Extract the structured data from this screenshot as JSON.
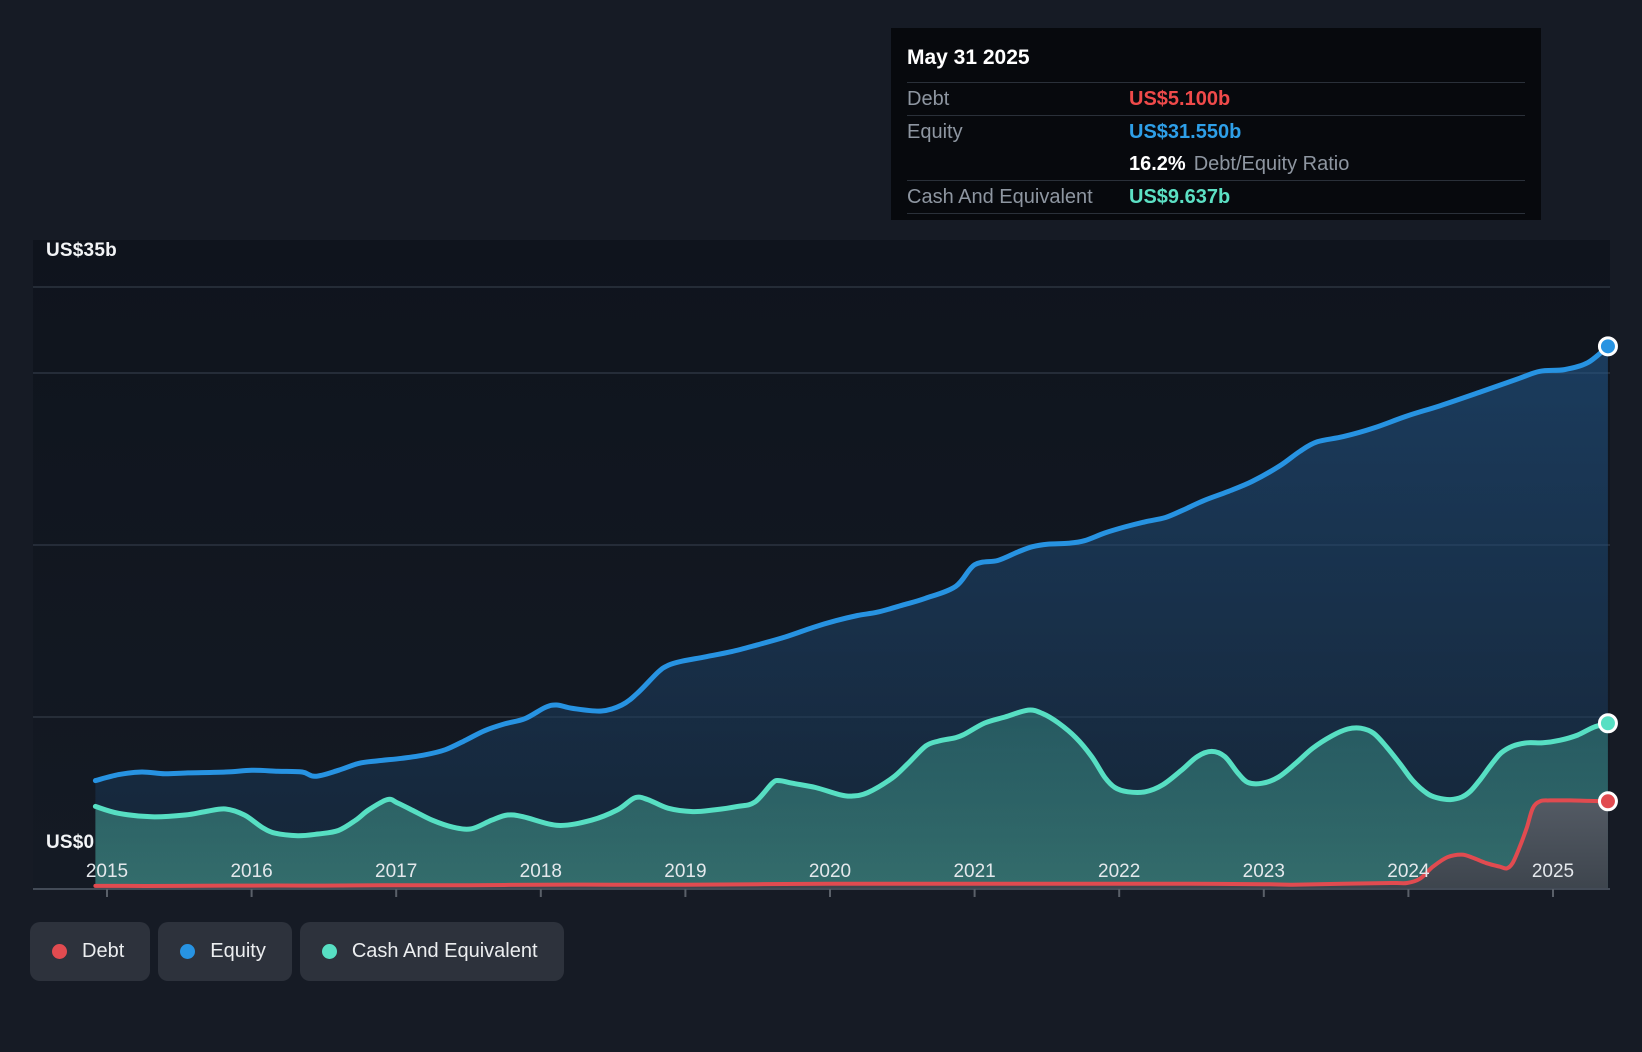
{
  "colors": {
    "debt": "#e14b50",
    "equity": "#2793e2",
    "cash": "#57dfc3",
    "debt_value": "#ef4a4a",
    "equity_value": "#2e9fe8",
    "cash_value": "#5ce0c4",
    "grid": "#2c3440",
    "axis": "#434b57",
    "tick": "#5a6069",
    "page_bg": "#161b25",
    "plot_bg_top": "#0f141d",
    "plot_bg_bottom": "#141a24",
    "tooltip_bg": "#07090d",
    "legend_bg": "#2d323c"
  },
  "tooltip": {
    "date": "May 31 2025",
    "rows": [
      {
        "label": "Debt",
        "value": "US$5.100b",
        "color_key": "debt_value"
      },
      {
        "label": "Equity",
        "value": "US$31.550b",
        "color_key": "equity_value"
      },
      {
        "label": "Cash And Equivalent",
        "value": "US$9.637b",
        "color_key": "cash_value"
      }
    ],
    "ratio_value": "16.2%",
    "ratio_label": "Debt/Equity Ratio"
  },
  "legend": {
    "items": [
      {
        "label": "Debt",
        "color_key": "debt"
      },
      {
        "label": "Equity",
        "color_key": "equity"
      },
      {
        "label": "Cash And Equivalent",
        "color_key": "cash"
      }
    ]
  },
  "chart_data": {
    "type": "area",
    "unit": "US$ billions",
    "y_axis": {
      "top_label": "US$35b",
      "bottom_label": "US$0",
      "max": 35,
      "min": 0,
      "gridline_values": [
        10,
        20,
        30,
        35
      ]
    },
    "x_axis": {
      "tick_years": [
        2015,
        2016,
        2017,
        2018,
        2019,
        2020,
        2021,
        2022,
        2023,
        2024,
        2025
      ],
      "start": 2014.92,
      "end": 2025.38
    },
    "legend_position": "bottom-left",
    "series": [
      {
        "name": "Equity",
        "color_key": "equity",
        "end_value": 31.55,
        "points": [
          [
            2014.92,
            6.3
          ],
          [
            2015.08,
            6.65
          ],
          [
            2015.24,
            6.8
          ],
          [
            2015.4,
            6.7
          ],
          [
            2015.56,
            6.75
          ],
          [
            2015.82,
            6.8
          ],
          [
            2016.0,
            6.9
          ],
          [
            2016.18,
            6.85
          ],
          [
            2016.35,
            6.8
          ],
          [
            2016.44,
            6.55
          ],
          [
            2016.6,
            6.9
          ],
          [
            2016.74,
            7.3
          ],
          [
            2016.87,
            7.45
          ],
          [
            2017.04,
            7.6
          ],
          [
            2017.2,
            7.8
          ],
          [
            2017.34,
            8.1
          ],
          [
            2017.48,
            8.65
          ],
          [
            2017.61,
            9.2
          ],
          [
            2017.75,
            9.6
          ],
          [
            2017.89,
            9.9
          ],
          [
            2018.03,
            10.55
          ],
          [
            2018.11,
            10.7
          ],
          [
            2018.22,
            10.5
          ],
          [
            2018.42,
            10.35
          ],
          [
            2018.56,
            10.7
          ],
          [
            2018.67,
            11.4
          ],
          [
            2018.81,
            12.6
          ],
          [
            2018.88,
            13.0
          ],
          [
            2018.98,
            13.25
          ],
          [
            2019.14,
            13.5
          ],
          [
            2019.32,
            13.8
          ],
          [
            2019.5,
            14.2
          ],
          [
            2019.69,
            14.65
          ],
          [
            2019.88,
            15.2
          ],
          [
            2020.04,
            15.6
          ],
          [
            2020.19,
            15.9
          ],
          [
            2020.33,
            16.1
          ],
          [
            2020.5,
            16.5
          ],
          [
            2020.66,
            16.9
          ],
          [
            2020.87,
            17.6
          ],
          [
            2021.0,
            18.85
          ],
          [
            2021.16,
            19.1
          ],
          [
            2021.3,
            19.6
          ],
          [
            2021.4,
            19.9
          ],
          [
            2021.51,
            20.05
          ],
          [
            2021.65,
            20.1
          ],
          [
            2021.76,
            20.25
          ],
          [
            2021.9,
            20.7
          ],
          [
            2022.04,
            21.05
          ],
          [
            2022.18,
            21.35
          ],
          [
            2022.32,
            21.6
          ],
          [
            2022.46,
            22.1
          ],
          [
            2022.59,
            22.6
          ],
          [
            2022.75,
            23.1
          ],
          [
            2022.92,
            23.7
          ],
          [
            2023.11,
            24.6
          ],
          [
            2023.25,
            25.45
          ],
          [
            2023.37,
            26.0
          ],
          [
            2023.55,
            26.3
          ],
          [
            2023.76,
            26.8
          ],
          [
            2023.99,
            27.5
          ],
          [
            2024.22,
            28.1
          ],
          [
            2024.5,
            28.9
          ],
          [
            2024.77,
            29.7
          ],
          [
            2024.91,
            30.1
          ],
          [
            2025.08,
            30.2
          ],
          [
            2025.24,
            30.6
          ],
          [
            2025.38,
            31.55
          ]
        ]
      },
      {
        "name": "Cash And Equivalent",
        "color_key": "cash",
        "end_value": 9.637,
        "points": [
          [
            2014.92,
            4.8
          ],
          [
            2015.08,
            4.4
          ],
          [
            2015.31,
            4.2
          ],
          [
            2015.54,
            4.3
          ],
          [
            2015.68,
            4.5
          ],
          [
            2015.82,
            4.65
          ],
          [
            2015.95,
            4.3
          ],
          [
            2016.07,
            3.6
          ],
          [
            2016.16,
            3.25
          ],
          [
            2016.32,
            3.1
          ],
          [
            2016.46,
            3.2
          ],
          [
            2016.6,
            3.4
          ],
          [
            2016.72,
            4.0
          ],
          [
            2016.81,
            4.6
          ],
          [
            2016.94,
            5.2
          ],
          [
            2017.01,
            5.0
          ],
          [
            2017.13,
            4.5
          ],
          [
            2017.25,
            4.0
          ],
          [
            2017.39,
            3.6
          ],
          [
            2017.52,
            3.5
          ],
          [
            2017.66,
            4.0
          ],
          [
            2017.77,
            4.3
          ],
          [
            2017.88,
            4.2
          ],
          [
            2018.12,
            3.7
          ],
          [
            2018.35,
            4.0
          ],
          [
            2018.53,
            4.6
          ],
          [
            2018.65,
            5.3
          ],
          [
            2018.74,
            5.2
          ],
          [
            2018.88,
            4.7
          ],
          [
            2019.05,
            4.5
          ],
          [
            2019.2,
            4.6
          ],
          [
            2019.36,
            4.8
          ],
          [
            2019.48,
            5.05
          ],
          [
            2019.6,
            6.15
          ],
          [
            2019.65,
            6.3
          ],
          [
            2019.74,
            6.15
          ],
          [
            2019.9,
            5.9
          ],
          [
            2020.06,
            5.5
          ],
          [
            2020.15,
            5.4
          ],
          [
            2020.26,
            5.6
          ],
          [
            2020.43,
            6.45
          ],
          [
            2020.54,
            7.3
          ],
          [
            2020.66,
            8.3
          ],
          [
            2020.75,
            8.6
          ],
          [
            2020.87,
            8.8
          ],
          [
            2020.93,
            9.0
          ],
          [
            2021.07,
            9.65
          ],
          [
            2021.21,
            10.0
          ],
          [
            2021.37,
            10.4
          ],
          [
            2021.47,
            10.2
          ],
          [
            2021.58,
            9.65
          ],
          [
            2021.7,
            8.8
          ],
          [
            2021.81,
            7.7
          ],
          [
            2021.9,
            6.5
          ],
          [
            2021.97,
            5.9
          ],
          [
            2022.06,
            5.65
          ],
          [
            2022.18,
            5.65
          ],
          [
            2022.3,
            6.05
          ],
          [
            2022.43,
            6.9
          ],
          [
            2022.54,
            7.7
          ],
          [
            2022.64,
            8.0
          ],
          [
            2022.73,
            7.7
          ],
          [
            2022.82,
            6.75
          ],
          [
            2022.89,
            6.2
          ],
          [
            2022.99,
            6.15
          ],
          [
            2023.1,
            6.5
          ],
          [
            2023.22,
            7.3
          ],
          [
            2023.34,
            8.2
          ],
          [
            2023.47,
            8.9
          ],
          [
            2023.58,
            9.3
          ],
          [
            2023.67,
            9.35
          ],
          [
            2023.76,
            9.05
          ],
          [
            2023.85,
            8.25
          ],
          [
            2023.94,
            7.3
          ],
          [
            2024.03,
            6.3
          ],
          [
            2024.13,
            5.55
          ],
          [
            2024.2,
            5.3
          ],
          [
            2024.29,
            5.2
          ],
          [
            2024.37,
            5.35
          ],
          [
            2024.43,
            5.7
          ],
          [
            2024.5,
            6.4
          ],
          [
            2024.57,
            7.2
          ],
          [
            2024.64,
            7.9
          ],
          [
            2024.72,
            8.3
          ],
          [
            2024.82,
            8.5
          ],
          [
            2024.93,
            8.5
          ],
          [
            2025.05,
            8.65
          ],
          [
            2025.17,
            8.95
          ],
          [
            2025.28,
            9.4
          ],
          [
            2025.38,
            9.637
          ]
        ]
      },
      {
        "name": "Debt",
        "color_key": "debt",
        "end_value": 5.1,
        "points": [
          [
            2014.92,
            0.18
          ],
          [
            2015.5,
            0.18
          ],
          [
            2016.0,
            0.2
          ],
          [
            2016.5,
            0.2
          ],
          [
            2017.0,
            0.22
          ],
          [
            2017.5,
            0.22
          ],
          [
            2018.0,
            0.25
          ],
          [
            2018.5,
            0.25
          ],
          [
            2019.0,
            0.25
          ],
          [
            2019.5,
            0.28
          ],
          [
            2020.0,
            0.3
          ],
          [
            2020.5,
            0.3
          ],
          [
            2021.0,
            0.3
          ],
          [
            2021.5,
            0.3
          ],
          [
            2022.0,
            0.3
          ],
          [
            2022.5,
            0.3
          ],
          [
            2023.0,
            0.28
          ],
          [
            2023.2,
            0.25
          ],
          [
            2023.55,
            0.3
          ],
          [
            2023.88,
            0.35
          ],
          [
            2023.99,
            0.35
          ],
          [
            2024.08,
            0.6
          ],
          [
            2024.17,
            1.3
          ],
          [
            2024.27,
            1.85
          ],
          [
            2024.37,
            2.0
          ],
          [
            2024.45,
            1.8
          ],
          [
            2024.54,
            1.5
          ],
          [
            2024.63,
            1.3
          ],
          [
            2024.68,
            1.2
          ],
          [
            2024.72,
            1.5
          ],
          [
            2024.77,
            2.45
          ],
          [
            2024.82,
            3.6
          ],
          [
            2024.86,
            4.7
          ],
          [
            2024.91,
            5.1
          ],
          [
            2024.98,
            5.15
          ],
          [
            2025.12,
            5.15
          ],
          [
            2025.25,
            5.12
          ],
          [
            2025.38,
            5.1
          ]
        ]
      }
    ]
  }
}
